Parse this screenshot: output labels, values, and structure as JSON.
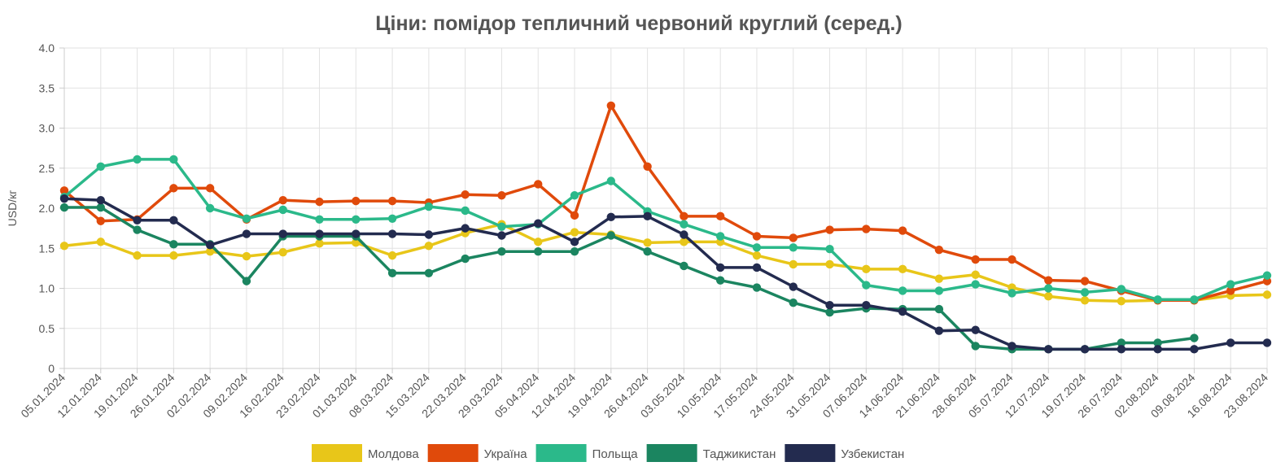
{
  "chart_data": {
    "type": "line",
    "title": "Ціни: помідор тепличний червоний круглий (серед.)",
    "xlabel": "",
    "ylabel": "USD/кг",
    "ylim": [
      0,
      4.0
    ],
    "yticks": [
      "0",
      "0.5",
      "1.0",
      "1.5",
      "2.0",
      "2.5",
      "3.0",
      "3.5",
      "4.0"
    ],
    "grid": true,
    "legend_position": "bottom",
    "x": [
      "05.01.2024",
      "12.01.2024",
      "19.01.2024",
      "26.01.2024",
      "02.02.2024",
      "09.02.2024",
      "16.02.2024",
      "23.02.2024",
      "01.03.2024",
      "08.03.2024",
      "15.03.2024",
      "22.03.2024",
      "29.03.2024",
      "05.04.2024",
      "12.04.2024",
      "19.04.2024",
      "26.04.2024",
      "03.05.2024",
      "10.05.2024",
      "17.05.2024",
      "24.05.2024",
      "31.05.2024",
      "07.06.2024",
      "14.06.2024",
      "21.06.2024",
      "28.06.2024",
      "05.07.2024",
      "12.07.2024",
      "19.07.2024",
      "26.07.2024",
      "02.08.2024",
      "09.08.2024",
      "16.08.2024",
      "23.08.2024"
    ],
    "series": [
      {
        "name": "Молдова",
        "color": "#e8c619",
        "values": [
          1.53,
          1.58,
          1.41,
          1.41,
          1.46,
          1.4,
          1.45,
          1.56,
          1.57,
          1.41,
          1.53,
          1.69,
          1.8,
          1.58,
          1.7,
          1.67,
          1.57,
          1.58,
          1.58,
          1.41,
          1.3,
          1.3,
          1.24,
          1.24,
          1.12,
          1.17,
          1.01,
          0.9,
          0.85,
          0.84,
          0.85,
          0.85,
          0.91,
          0.92
        ]
      },
      {
        "name": "Україна",
        "color": "#e04a0b",
        "values": [
          2.22,
          1.84,
          1.86,
          2.25,
          2.25,
          1.86,
          2.1,
          2.08,
          2.09,
          2.09,
          2.07,
          2.17,
          2.16,
          2.3,
          1.91,
          3.28,
          2.52,
          1.9,
          1.9,
          1.65,
          1.63,
          1.73,
          1.74,
          1.72,
          1.48,
          1.36,
          1.36,
          1.1,
          1.09,
          0.97,
          0.85,
          0.85,
          0.97,
          1.09
        ]
      },
      {
        "name": "Польща",
        "color": "#2bb98a",
        "values": [
          2.14,
          2.52,
          2.61,
          2.61,
          2.0,
          1.87,
          1.98,
          1.86,
          1.86,
          1.87,
          2.02,
          1.97,
          1.77,
          1.8,
          2.16,
          2.34,
          1.96,
          1.8,
          1.65,
          1.51,
          1.51,
          1.49,
          1.04,
          0.97,
          0.97,
          1.05,
          0.94,
          1.0,
          0.95,
          0.99,
          0.86,
          0.86,
          1.05,
          1.16
        ]
      },
      {
        "name": "Таджикистан",
        "color": "#1b8560",
        "values": [
          2.01,
          2.01,
          1.73,
          1.55,
          1.55,
          1.09,
          1.65,
          1.65,
          1.65,
          1.19,
          1.19,
          1.37,
          1.46,
          1.46,
          1.46,
          1.66,
          1.46,
          1.28,
          1.1,
          1.01,
          0.82,
          0.7,
          0.75,
          0.74,
          0.74,
          0.28,
          0.24,
          0.24,
          0.24,
          0.32,
          0.32,
          0.38,
          null,
          null
        ]
      },
      {
        "name": "Узбекистан",
        "color": "#232b4f",
        "values": [
          2.12,
          2.1,
          1.85,
          1.85,
          1.54,
          1.68,
          1.68,
          1.68,
          1.68,
          1.68,
          1.67,
          1.75,
          1.66,
          1.81,
          1.58,
          1.89,
          1.9,
          1.67,
          1.26,
          1.26,
          1.02,
          0.79,
          0.79,
          0.71,
          0.47,
          0.48,
          0.28,
          0.24,
          0.24,
          0.24,
          0.24,
          0.24,
          0.32,
          0.32
        ]
      }
    ]
  }
}
